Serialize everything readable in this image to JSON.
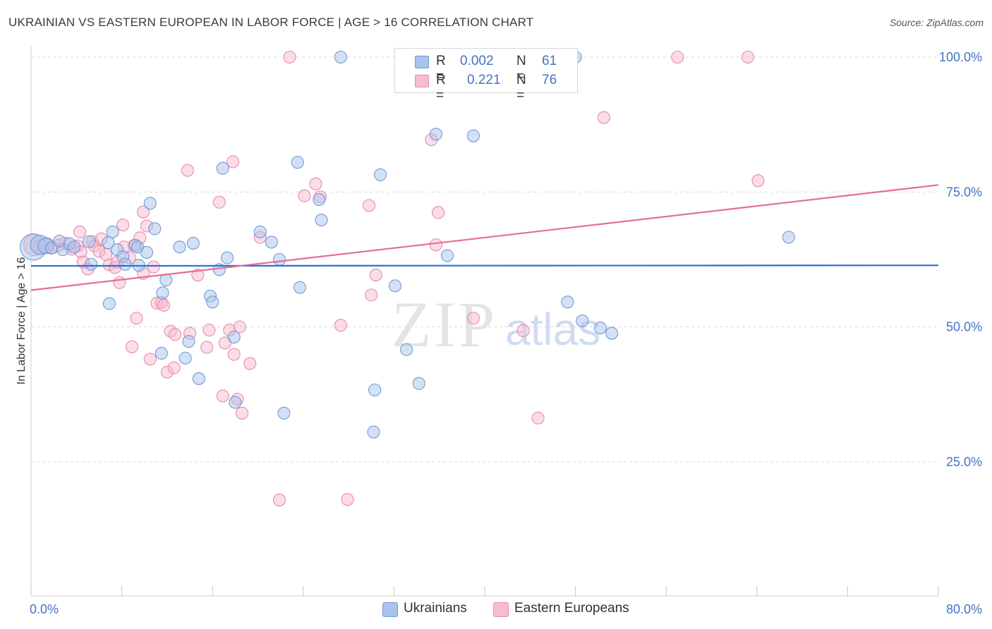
{
  "title": "UKRAINIAN VS EASTERN EUROPEAN IN LABOR FORCE | AGE > 16 CORRELATION CHART",
  "source": "Source: ZipAtlas.com",
  "watermark": {
    "zip": "ZIP",
    "atlas": "atlas"
  },
  "legend_top": [
    {
      "r_label": "R =",
      "r_value": "0.002",
      "n_label": "N =",
      "n_value": "61"
    },
    {
      "r_label": "R =",
      "r_value": "0.221",
      "n_label": "N =",
      "n_value": "76"
    }
  ],
  "legend_bottom": [
    {
      "label": "Ukrainians"
    },
    {
      "label": "Eastern Europeans"
    }
  ],
  "colors": {
    "blue_fill": "#a9c4ec",
    "blue_stroke": "#6f9bd8",
    "blue_line": "#2f6fd0",
    "pink_fill": "#f6bccf",
    "pink_stroke": "#e98aab",
    "pink_line": "#e56d9b",
    "grid": "#d9d9d9",
    "tick_label": "#4472c4"
  },
  "chart_data": {
    "type": "scatter",
    "title": "UKRAINIAN VS EASTERN EUROPEAN IN LABOR FORCE | AGE > 16 CORRELATION CHART",
    "xlabel": "",
    "ylabel": "In Labor Force | Age > 16",
    "xlim": [
      0,
      80
    ],
    "ylim": [
      0,
      105
    ],
    "x_tick_labels": [
      "0.0%",
      "80.0%"
    ],
    "y_ticks": [
      25,
      50,
      75,
      100
    ],
    "y_tick_labels": [
      "25.0%",
      "50.0%",
      "75.0%",
      "100.0%"
    ],
    "series": [
      {
        "name": "Ukrainians",
        "R": 0.002,
        "N": 61,
        "trend": {
          "x": [
            0,
            80
          ],
          "y": [
            61.3,
            61.4
          ]
        },
        "points": [
          {
            "x": 0.2,
            "y": 64.8,
            "s": 2.2
          },
          {
            "x": 0.8,
            "y": 65.2,
            "s": 1.6
          },
          {
            "x": 1.3,
            "y": 65.0,
            "s": 1.3
          },
          {
            "x": 1.8,
            "y": 64.6,
            "s": 1.0
          },
          {
            "x": 2.8,
            "y": 64.3,
            "s": 1.0
          },
          {
            "x": 3.4,
            "y": 65.4,
            "s": 1.0
          },
          {
            "x": 3.8,
            "y": 64.8,
            "s": 1.0
          },
          {
            "x": 5.1,
            "y": 65.8,
            "s": 1.0
          },
          {
            "x": 5.3,
            "y": 61.6,
            "s": 1.0
          },
          {
            "x": 6.8,
            "y": 65.6,
            "s": 1.0
          },
          {
            "x": 7.2,
            "y": 67.6,
            "s": 1.0
          },
          {
            "x": 7.6,
            "y": 64.3,
            "s": 1.0
          },
          {
            "x": 8.1,
            "y": 63.0,
            "s": 1.0
          },
          {
            "x": 6.9,
            "y": 54.3,
            "s": 1.0
          },
          {
            "x": 8.3,
            "y": 61.6,
            "s": 1.0
          },
          {
            "x": 9.2,
            "y": 65.1,
            "s": 1.0
          },
          {
            "x": 9.4,
            "y": 64.8,
            "s": 1.0
          },
          {
            "x": 9.5,
            "y": 61.4,
            "s": 1.0
          },
          {
            "x": 10.2,
            "y": 63.8,
            "s": 1.0
          },
          {
            "x": 10.5,
            "y": 72.9,
            "s": 1.0
          },
          {
            "x": 10.9,
            "y": 68.2,
            "s": 1.0
          },
          {
            "x": 11.6,
            "y": 56.3,
            "s": 1.0
          },
          {
            "x": 11.9,
            "y": 58.7,
            "s": 1.0
          },
          {
            "x": 11.5,
            "y": 45.1,
            "s": 1.0
          },
          {
            "x": 13.1,
            "y": 64.8,
            "s": 1.0
          },
          {
            "x": 13.6,
            "y": 44.2,
            "s": 1.0
          },
          {
            "x": 13.9,
            "y": 47.3,
            "s": 1.0
          },
          {
            "x": 14.3,
            "y": 65.5,
            "s": 1.0
          },
          {
            "x": 14.8,
            "y": 40.4,
            "s": 1.0
          },
          {
            "x": 15.8,
            "y": 55.7,
            "s": 1.0
          },
          {
            "x": 16.0,
            "y": 54.6,
            "s": 1.0
          },
          {
            "x": 16.6,
            "y": 60.6,
            "s": 1.0
          },
          {
            "x": 16.9,
            "y": 79.4,
            "s": 1.0
          },
          {
            "x": 17.3,
            "y": 62.8,
            "s": 1.0
          },
          {
            "x": 17.9,
            "y": 48.1,
            "s": 1.0
          },
          {
            "x": 18.0,
            "y": 36.0,
            "s": 1.0
          },
          {
            "x": 20.2,
            "y": 67.6,
            "s": 1.0
          },
          {
            "x": 21.2,
            "y": 65.7,
            "s": 1.0
          },
          {
            "x": 21.9,
            "y": 62.5,
            "s": 1.0
          },
          {
            "x": 22.3,
            "y": 34.0,
            "s": 1.0
          },
          {
            "x": 23.5,
            "y": 80.5,
            "s": 1.0
          },
          {
            "x": 23.7,
            "y": 57.3,
            "s": 1.0
          },
          {
            "x": 25.4,
            "y": 73.6,
            "s": 1.0
          },
          {
            "x": 25.6,
            "y": 69.8,
            "s": 1.0
          },
          {
            "x": 27.3,
            "y": 100.0,
            "s": 1.0
          },
          {
            "x": 30.3,
            "y": 38.3,
            "s": 1.0
          },
          {
            "x": 30.8,
            "y": 78.2,
            "s": 1.0
          },
          {
            "x": 30.2,
            "y": 30.5,
            "s": 1.0
          },
          {
            "x": 32.1,
            "y": 57.6,
            "s": 1.0
          },
          {
            "x": 33.1,
            "y": 45.8,
            "s": 1.0
          },
          {
            "x": 34.2,
            "y": 39.5,
            "s": 1.0
          },
          {
            "x": 35.7,
            "y": 85.7,
            "s": 1.0
          },
          {
            "x": 36.7,
            "y": 63.2,
            "s": 1.0
          },
          {
            "x": 39.0,
            "y": 85.4,
            "s": 1.0
          },
          {
            "x": 48.0,
            "y": 100.0,
            "s": 1.0
          },
          {
            "x": 47.3,
            "y": 54.6,
            "s": 1.0
          },
          {
            "x": 48.6,
            "y": 51.1,
            "s": 1.0
          },
          {
            "x": 50.2,
            "y": 49.8,
            "s": 1.0
          },
          {
            "x": 51.2,
            "y": 48.8,
            "s": 1.0
          },
          {
            "x": 66.8,
            "y": 66.6,
            "s": 1.0
          },
          {
            "x": 2.5,
            "y": 65.9,
            "s": 1.0
          }
        ]
      },
      {
        "name": "Eastern Europeans",
        "R": 0.221,
        "N": 76,
        "trend": {
          "x": [
            0,
            80
          ],
          "y": [
            56.8,
            76.3
          ]
        },
        "points": [
          {
            "x": 0.3,
            "y": 65.2,
            "s": 1.8
          },
          {
            "x": 0.9,
            "y": 64.9,
            "s": 1.3
          },
          {
            "x": 1.4,
            "y": 65.3,
            "s": 1.1
          },
          {
            "x": 1.9,
            "y": 64.7,
            "s": 1.0
          },
          {
            "x": 2.4,
            "y": 65.1,
            "s": 1.0
          },
          {
            "x": 3.0,
            "y": 65.5,
            "s": 1.0
          },
          {
            "x": 3.6,
            "y": 64.4,
            "s": 1.0
          },
          {
            "x": 4.1,
            "y": 65.0,
            "s": 1.0
          },
          {
            "x": 4.4,
            "y": 63.9,
            "s": 1.0
          },
          {
            "x": 4.6,
            "y": 62.0,
            "s": 1.0
          },
          {
            "x": 4.3,
            "y": 67.6,
            "s": 1.0
          },
          {
            "x": 5.0,
            "y": 60.7,
            "s": 1.0
          },
          {
            "x": 5.4,
            "y": 65.8,
            "s": 1.0
          },
          {
            "x": 5.6,
            "y": 65.0,
            "s": 1.0
          },
          {
            "x": 6.0,
            "y": 64.0,
            "s": 1.0
          },
          {
            "x": 6.2,
            "y": 66.3,
            "s": 1.0
          },
          {
            "x": 6.6,
            "y": 63.4,
            "s": 1.0
          },
          {
            "x": 6.9,
            "y": 61.5,
            "s": 1.0
          },
          {
            "x": 7.4,
            "y": 61.0,
            "s": 1.0
          },
          {
            "x": 7.6,
            "y": 62.0,
            "s": 1.0
          },
          {
            "x": 7.8,
            "y": 58.2,
            "s": 1.0
          },
          {
            "x": 8.2,
            "y": 64.8,
            "s": 1.0
          },
          {
            "x": 8.1,
            "y": 68.9,
            "s": 1.0
          },
          {
            "x": 8.7,
            "y": 62.8,
            "s": 1.0
          },
          {
            "x": 8.9,
            "y": 46.3,
            "s": 1.0
          },
          {
            "x": 9.1,
            "y": 65.1,
            "s": 1.0
          },
          {
            "x": 9.3,
            "y": 51.6,
            "s": 1.0
          },
          {
            "x": 9.6,
            "y": 66.5,
            "s": 1.0
          },
          {
            "x": 9.9,
            "y": 71.3,
            "s": 1.0
          },
          {
            "x": 10.2,
            "y": 68.7,
            "s": 1.0
          },
          {
            "x": 10.5,
            "y": 44.0,
            "s": 1.0
          },
          {
            "x": 10.8,
            "y": 61.1,
            "s": 1.0
          },
          {
            "x": 11.1,
            "y": 54.4,
            "s": 1.0
          },
          {
            "x": 11.5,
            "y": 54.5,
            "s": 1.0
          },
          {
            "x": 11.7,
            "y": 54.0,
            "s": 1.0
          },
          {
            "x": 12.0,
            "y": 41.6,
            "s": 1.0
          },
          {
            "x": 12.3,
            "y": 49.2,
            "s": 1.0
          },
          {
            "x": 12.6,
            "y": 42.4,
            "s": 1.0
          },
          {
            "x": 13.8,
            "y": 79.0,
            "s": 1.0
          },
          {
            "x": 14.0,
            "y": 48.8,
            "s": 1.0
          },
          {
            "x": 14.7,
            "y": 59.6,
            "s": 1.0
          },
          {
            "x": 15.5,
            "y": 46.2,
            "s": 1.0
          },
          {
            "x": 15.7,
            "y": 49.4,
            "s": 1.0
          },
          {
            "x": 16.6,
            "y": 73.1,
            "s": 1.0
          },
          {
            "x": 16.9,
            "y": 37.2,
            "s": 1.0
          },
          {
            "x": 17.1,
            "y": 47.0,
            "s": 1.0
          },
          {
            "x": 17.5,
            "y": 49.4,
            "s": 1.0
          },
          {
            "x": 17.8,
            "y": 80.6,
            "s": 1.0
          },
          {
            "x": 17.9,
            "y": 44.9,
            "s": 1.0
          },
          {
            "x": 18.2,
            "y": 36.6,
            "s": 1.0
          },
          {
            "x": 18.4,
            "y": 50.0,
            "s": 1.0
          },
          {
            "x": 18.6,
            "y": 34.0,
            "s": 1.0
          },
          {
            "x": 19.3,
            "y": 43.2,
            "s": 1.0
          },
          {
            "x": 20.2,
            "y": 66.6,
            "s": 1.0
          },
          {
            "x": 21.9,
            "y": 17.9,
            "s": 1.0
          },
          {
            "x": 22.8,
            "y": 100.0,
            "s": 1.0
          },
          {
            "x": 24.1,
            "y": 74.3,
            "s": 1.0
          },
          {
            "x": 25.1,
            "y": 76.5,
            "s": 1.0
          },
          {
            "x": 25.5,
            "y": 74.1,
            "s": 1.0
          },
          {
            "x": 27.3,
            "y": 50.3,
            "s": 1.0
          },
          {
            "x": 27.9,
            "y": 18.0,
            "s": 1.0
          },
          {
            "x": 29.8,
            "y": 72.5,
            "s": 1.0
          },
          {
            "x": 30.0,
            "y": 55.9,
            "s": 1.0
          },
          {
            "x": 30.4,
            "y": 59.6,
            "s": 1.0
          },
          {
            "x": 35.3,
            "y": 84.7,
            "s": 1.0
          },
          {
            "x": 35.7,
            "y": 65.2,
            "s": 1.0
          },
          {
            "x": 35.9,
            "y": 71.2,
            "s": 1.0
          },
          {
            "x": 39.0,
            "y": 51.6,
            "s": 1.0
          },
          {
            "x": 43.4,
            "y": 49.3,
            "s": 1.0
          },
          {
            "x": 44.7,
            "y": 33.1,
            "s": 1.0
          },
          {
            "x": 50.5,
            "y": 88.8,
            "s": 1.0
          },
          {
            "x": 57.0,
            "y": 100.0,
            "s": 1.0
          },
          {
            "x": 63.2,
            "y": 100.0,
            "s": 1.0
          },
          {
            "x": 64.1,
            "y": 77.1,
            "s": 1.0
          },
          {
            "x": 12.7,
            "y": 48.6,
            "s": 1.0
          },
          {
            "x": 9.9,
            "y": 59.9,
            "s": 1.0
          }
        ]
      }
    ]
  }
}
